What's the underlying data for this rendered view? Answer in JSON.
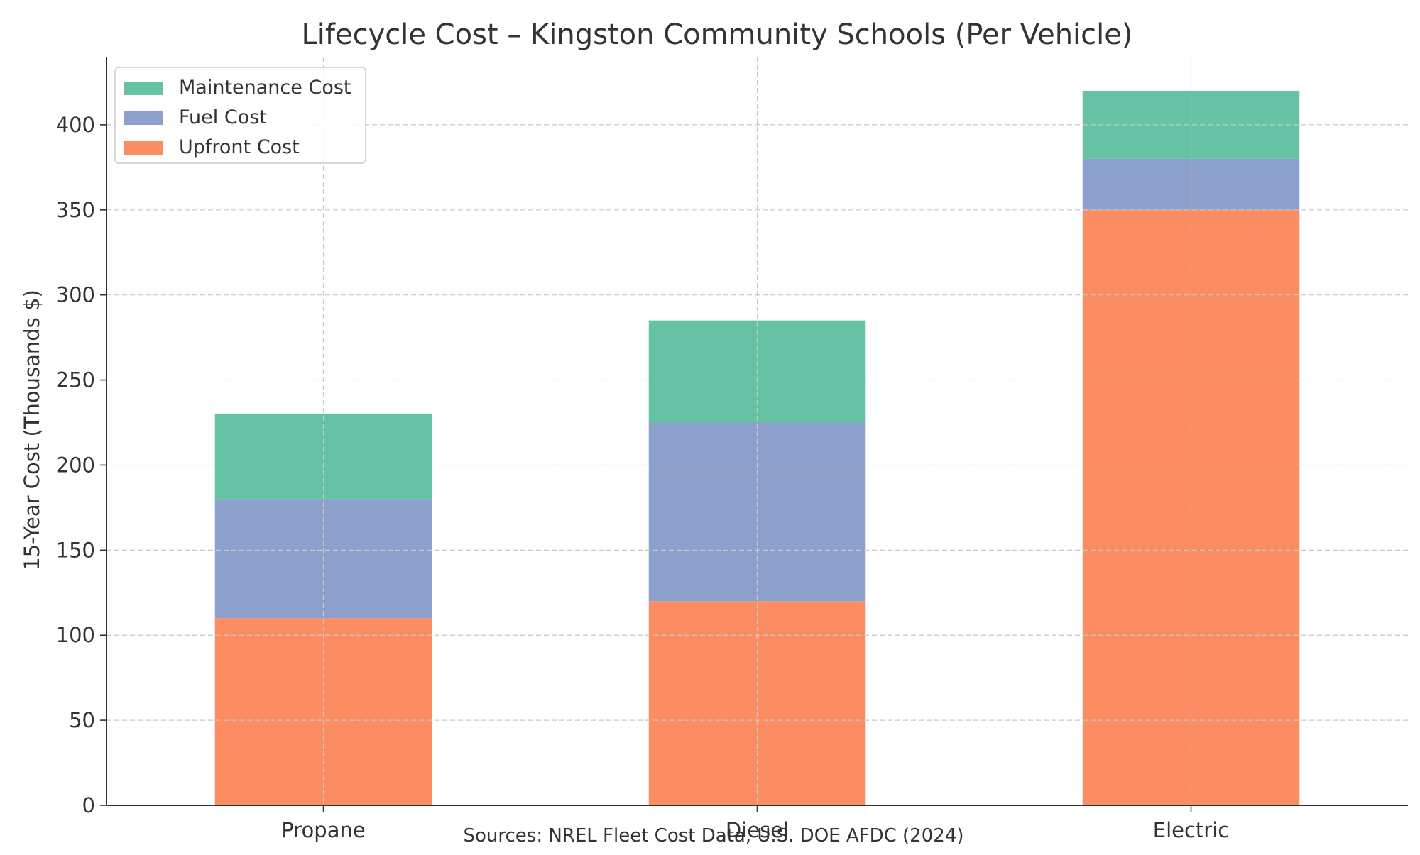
{
  "chart_data": {
    "type": "bar",
    "stacked": true,
    "title": "Lifecycle Cost – Kingston Community Schools (Per Vehicle)",
    "xlabel": "",
    "ylabel": "15-Year Cost (Thousands $)",
    "ylim": [
      0,
      440
    ],
    "yticks": [
      0,
      50,
      100,
      150,
      200,
      250,
      300,
      350,
      400
    ],
    "grid": true,
    "legend_position": "top-left",
    "categories": [
      "Propane",
      "Diesel",
      "Electric"
    ],
    "series": [
      {
        "name": "Upfront Cost",
        "values": [
          110,
          120,
          350
        ],
        "color": "#fc8d62"
      },
      {
        "name": "Fuel Cost",
        "values": [
          70,
          105,
          30
        ],
        "color": "#8da0cb"
      },
      {
        "name": "Maintenance Cost",
        "values": [
          50,
          60,
          40
        ],
        "color": "#66c2a5"
      }
    ],
    "legend_order": [
      "Maintenance Cost",
      "Fuel Cost",
      "Upfront Cost"
    ],
    "source_note": "Sources: NREL Fleet Cost Data, U.S. DOE AFDC (2024)"
  }
}
